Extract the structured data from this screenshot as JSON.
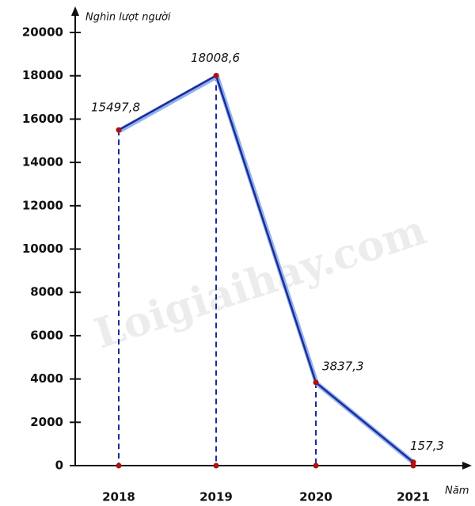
{
  "chart_data": {
    "type": "line",
    "y_axis_label": "Nghìn lượt người",
    "x_axis_label": "Năm",
    "watermark": "Loigiaihay.com",
    "categories": [
      "2018",
      "2019",
      "2020",
      "2021"
    ],
    "series": [
      {
        "name": null,
        "color": "#1f2a9a",
        "values": [
          15497.8,
          18008.6,
          3837.3,
          157.3
        ],
        "value_labels": [
          "15497,8",
          "18008,6",
          "3837,3",
          "157,3"
        ]
      }
    ],
    "ylim": [
      0,
      20000
    ],
    "yticks": [
      0,
      2000,
      4000,
      6000,
      8000,
      10000,
      12000,
      14000,
      16000,
      18000,
      20000
    ],
    "point_color": "#b01010",
    "drop_lines": true
  }
}
